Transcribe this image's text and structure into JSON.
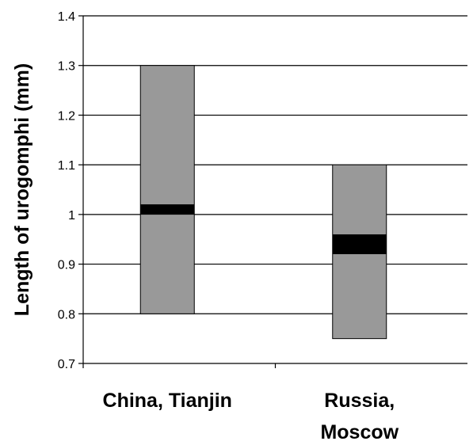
{
  "chart_data": {
    "type": "bar",
    "subtype": "floating-range-with-marker",
    "title": "",
    "xlabel": "",
    "ylabel": "Length of urogomphi (mm)",
    "ylim": [
      0.7,
      1.4
    ],
    "yticks": [
      0.7,
      0.8,
      0.9,
      1.0,
      1.1,
      1.2,
      1.3,
      1.4
    ],
    "ytick_labels": [
      "0.7",
      "0.8",
      "0.9",
      "1",
      "1.1",
      "1.2",
      "1.3",
      "1.4"
    ],
    "grid": true,
    "categories": [
      {
        "label_lines": [
          "China, Tianjin"
        ],
        "min": 0.8,
        "max": 1.3,
        "center": 1.01
      },
      {
        "label_lines": [
          "Russia,",
          "Moscow"
        ],
        "min": 0.75,
        "max": 1.1,
        "center": 0.94
      }
    ],
    "colors": {
      "range_fill": "#999999",
      "range_stroke": "#000000",
      "marker": "#000000",
      "grid": "#000000",
      "axis": "#000000"
    }
  }
}
